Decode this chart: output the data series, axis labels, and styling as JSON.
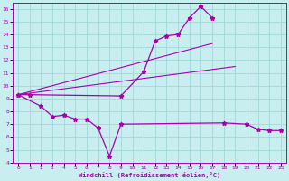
{
  "xlabel": "Windchill (Refroidissement éolien,°C)",
  "background_color": "#c8eef0",
  "line_color": "#aa00aa",
  "grid_color": "#a0d8d8",
  "xlim": [
    -0.5,
    23.5
  ],
  "ylim": [
    4,
    16.5
  ],
  "xticks": [
    0,
    1,
    2,
    3,
    4,
    5,
    6,
    7,
    8,
    9,
    10,
    11,
    12,
    13,
    14,
    15,
    16,
    17,
    18,
    19,
    20,
    21,
    22,
    23
  ],
  "yticks": [
    4,
    5,
    6,
    7,
    8,
    9,
    10,
    11,
    12,
    13,
    14,
    15,
    16
  ],
  "line1_x": [
    0,
    1,
    9,
    11,
    12,
    13,
    14,
    15,
    16,
    17
  ],
  "line1_y": [
    9.3,
    9.3,
    9.2,
    11.1,
    13.5,
    13.9,
    14.0,
    15.3,
    16.2,
    15.3
  ],
  "line2_x": [
    0,
    17
  ],
  "line2_y": [
    9.3,
    13.3
  ],
  "line3_x": [
    0,
    19
  ],
  "line3_y": [
    9.3,
    11.5
  ],
  "line4_x": [
    0,
    2,
    3,
    4,
    5,
    6,
    7,
    8,
    9,
    18,
    20,
    21,
    22,
    23
  ],
  "line4_y": [
    9.3,
    8.4,
    7.6,
    7.7,
    7.4,
    7.4,
    6.7,
    4.5,
    7.0,
    7.1,
    7.0,
    6.6,
    6.5,
    6.5
  ]
}
